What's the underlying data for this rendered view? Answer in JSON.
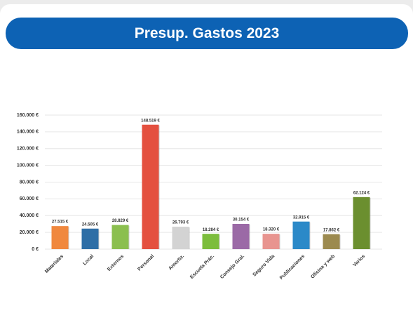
{
  "chart_data": {
    "type": "bar",
    "title": "Presup. Gastos 2023",
    "categories": [
      "Materiales",
      "Local",
      "Externos",
      "Personal",
      "Amortiz.",
      "Escuela Prác.",
      "Consejo Gral.",
      "Seguro Vida",
      "Publicaciones",
      "Oficina y web",
      "Varios"
    ],
    "values": [
      27515,
      24505,
      28829,
      148519,
      26793,
      18284,
      30154,
      18320,
      32915,
      17862,
      62124
    ],
    "value_labels": [
      "27.515 €",
      "24.505 €",
      "28.829 €",
      "148.519 €",
      "26.793 €",
      "18.284 €",
      "30.154 €",
      "18.320 €",
      "32.915 €",
      "17.862 €",
      "62.124 €"
    ],
    "colors": [
      "#f0883e",
      "#2e6ea6",
      "#8bbf4f",
      "#e4503f",
      "#d3d3d3",
      "#7cbd3c",
      "#9b6aa6",
      "#e8948f",
      "#2b89c8",
      "#9c8a4f",
      "#6b8f2f"
    ],
    "ylim": [
      0,
      160000
    ],
    "yticks": [
      {
        "value": 0,
        "label": "0 €"
      },
      {
        "value": 20000,
        "label": "20.000 €"
      },
      {
        "value": 40000,
        "label": "40.000 €"
      },
      {
        "value": 60000,
        "label": "60.000 €"
      },
      {
        "value": 80000,
        "label": "80.000 €"
      },
      {
        "value": 100000,
        "label": "100.000 €"
      },
      {
        "value": 120000,
        "label": "120.000 €"
      },
      {
        "value": 140000,
        "label": "140.000 €"
      },
      {
        "value": 160000,
        "label": "160.000 €"
      }
    ],
    "grid": true
  }
}
